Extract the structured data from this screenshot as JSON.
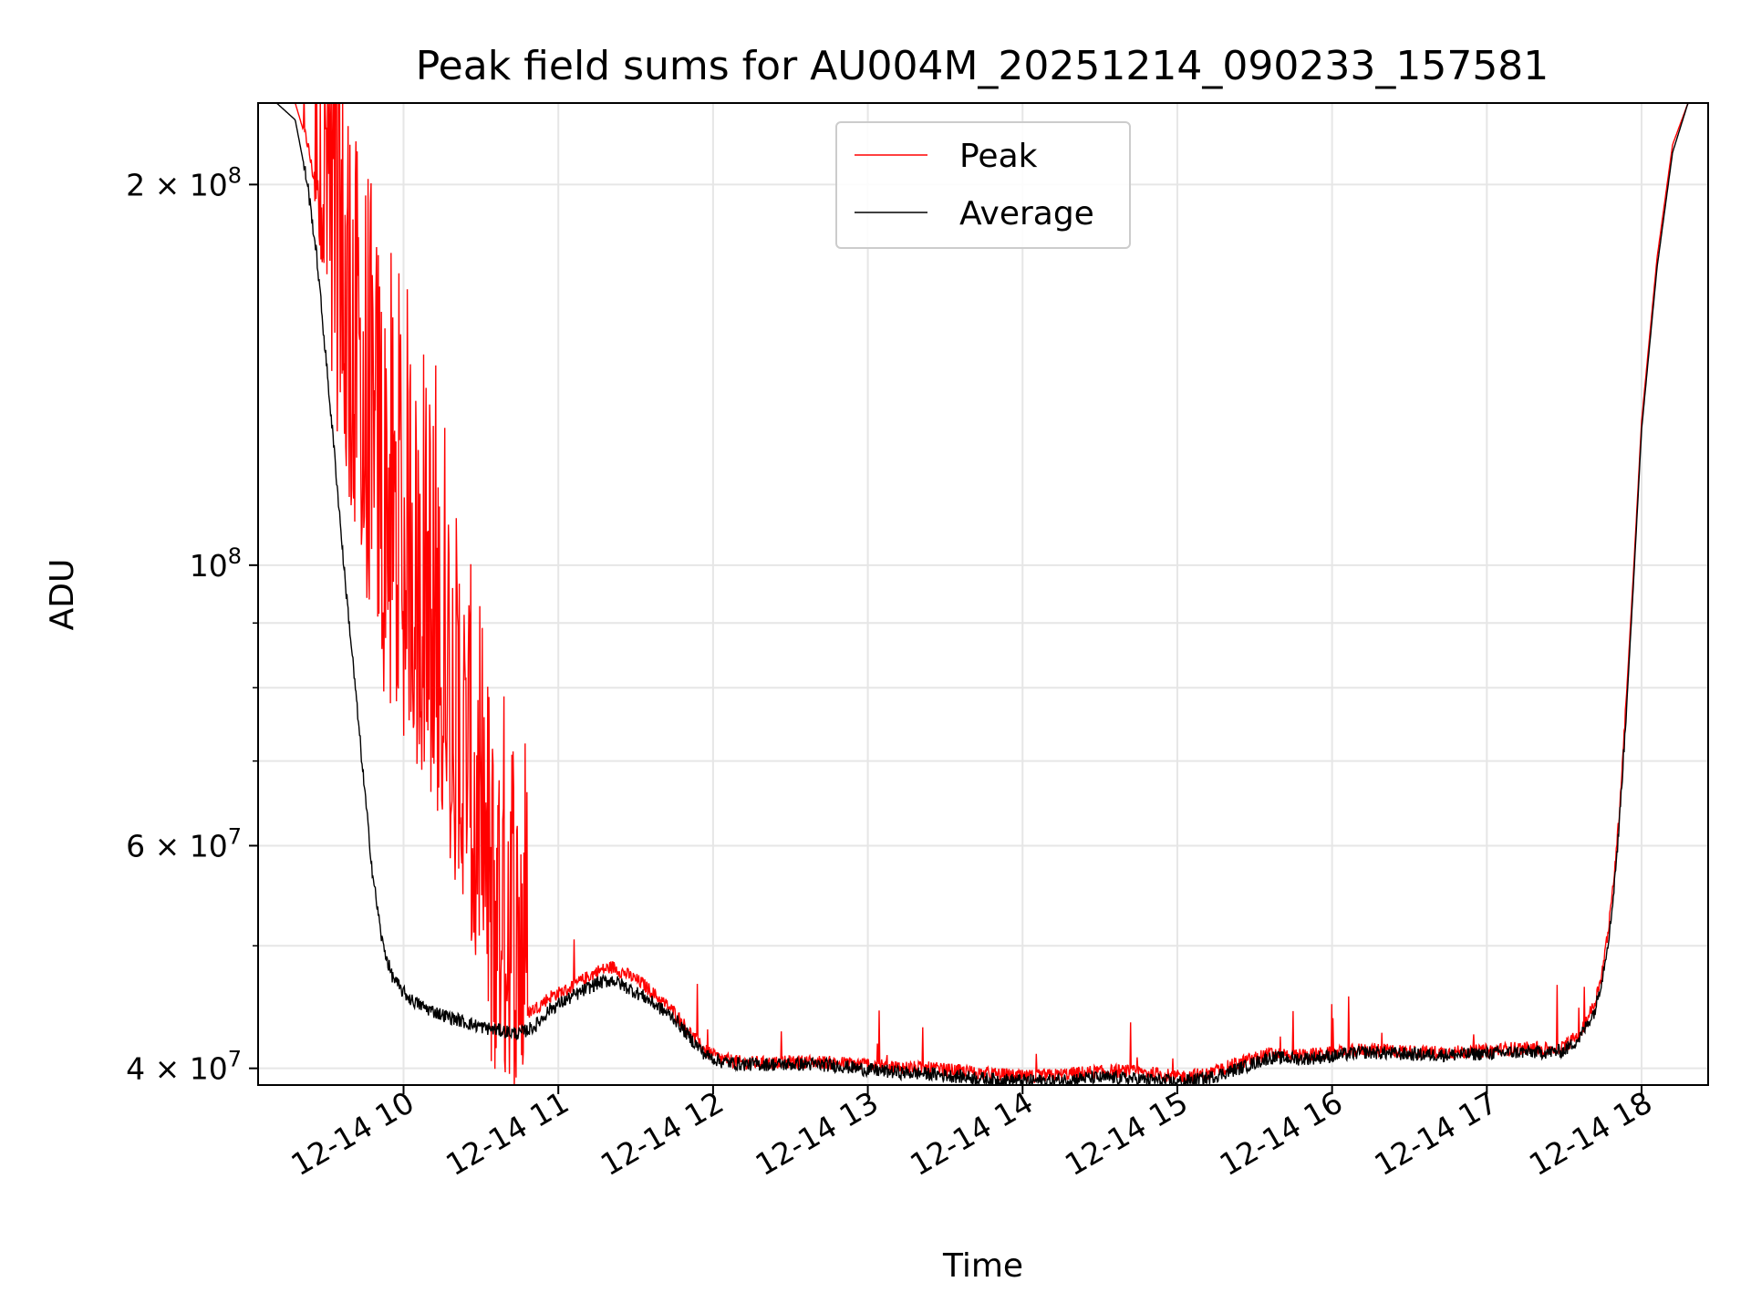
{
  "chart_data": {
    "type": "line",
    "title": "Peak field sums for AU004M_20251214_090233_157581",
    "xlabel": "Time",
    "ylabel": "ADU",
    "yscale": "log",
    "xlim": [
      9.06,
      18.43
    ],
    "ylim": [
      38800000,
      232000000
    ],
    "grid": true,
    "legend_position": "top-center",
    "x_ticks": [
      {
        "value": 10,
        "label": "12-14 10"
      },
      {
        "value": 11,
        "label": "12-14 11"
      },
      {
        "value": 12,
        "label": "12-14 12"
      },
      {
        "value": 13,
        "label": "12-14 13"
      },
      {
        "value": 14,
        "label": "12-14 14"
      },
      {
        "value": 15,
        "label": "12-14 15"
      },
      {
        "value": 16,
        "label": "12-14 16"
      },
      {
        "value": 17,
        "label": "12-14 17"
      },
      {
        "value": 18,
        "label": "12-14 18"
      }
    ],
    "y_major_ticks": [
      {
        "value": 40000000,
        "label": "4 × 10",
        "exp": "7"
      },
      {
        "value": 60000000,
        "label": "6 × 10",
        "exp": "7"
      },
      {
        "value": 100000000,
        "label": "10",
        "exp": "8"
      },
      {
        "value": 200000000,
        "label": "2 × 10",
        "exp": "8"
      }
    ],
    "y_minor_ticks": [
      50000000,
      70000000,
      80000000,
      90000000
    ],
    "series": [
      {
        "name": "Peak",
        "color": "#ff0000",
        "x": [
          9.06,
          9.18,
          9.3,
          9.38,
          9.44,
          9.5,
          9.56,
          9.62,
          9.68,
          9.74,
          9.8,
          9.86,
          9.92,
          9.98,
          10.05,
          10.15,
          10.25,
          10.35,
          10.45,
          10.55,
          10.65,
          10.75,
          10.85,
          10.95,
          11.05,
          11.15,
          11.25,
          11.35,
          11.45,
          11.55,
          11.65,
          11.75,
          11.85,
          11.95,
          12.05,
          12.2,
          12.4,
          12.6,
          12.8,
          13.0,
          13.2,
          13.4,
          13.6,
          13.8,
          14.0,
          14.2,
          14.4,
          14.6,
          14.8,
          15.0,
          15.2,
          15.4,
          15.6,
          15.8,
          16.0,
          16.2,
          16.4,
          16.6,
          16.8,
          17.0,
          17.2,
          17.4,
          17.5,
          17.6,
          17.7,
          17.75,
          17.8,
          17.85,
          17.9,
          17.95,
          18.0,
          18.1,
          18.2,
          18.3,
          18.43
        ],
        "values": [
          232000000,
          232000000,
          232000000,
          215000000,
          195000000,
          175000000,
          155000000,
          138000000,
          124000000,
          112000000,
          102000000,
          95000000,
          91000000,
          88000000,
          85000000,
          78000000,
          72000000,
          63000000,
          55000000,
          47000000,
          44500000,
          43800000,
          44500000,
          45500000,
          46000000,
          46800000,
          47600000,
          48000000,
          47300000,
          46500000,
          45300000,
          44200000,
          42600000,
          41200000,
          40600000,
          40300000,
          40300000,
          40400000,
          40300000,
          40200000,
          40000000,
          39900000,
          39700000,
          39500000,
          39300000,
          39400000,
          39600000,
          39700000,
          39600000,
          39300000,
          39500000,
          40300000,
          41000000,
          40900000,
          41000000,
          41300000,
          41200000,
          41100000,
          41100000,
          41200000,
          41400000,
          41300000,
          41500000,
          42500000,
          45000000,
          48000000,
          53000000,
          62000000,
          78000000,
          100000000,
          130000000,
          175000000,
          215000000,
          232000000,
          232000000
        ]
      },
      {
        "name": "Average",
        "color": "#000000",
        "x": [
          9.06,
          9.18,
          9.3,
          9.38,
          9.44,
          9.5,
          9.56,
          9.62,
          9.68,
          9.74,
          9.8,
          9.86,
          9.92,
          9.98,
          10.05,
          10.15,
          10.25,
          10.35,
          10.45,
          10.55,
          10.65,
          10.75,
          10.85,
          10.95,
          11.05,
          11.15,
          11.25,
          11.35,
          11.45,
          11.55,
          11.65,
          11.75,
          11.85,
          11.95,
          12.05,
          12.2,
          12.4,
          12.6,
          12.8,
          13.0,
          13.2,
          13.4,
          13.6,
          13.8,
          14.0,
          14.2,
          14.4,
          14.6,
          14.8,
          15.0,
          15.2,
          15.4,
          15.6,
          15.8,
          16.0,
          16.2,
          16.4,
          16.6,
          16.8,
          17.0,
          17.2,
          17.4,
          17.5,
          17.6,
          17.7,
          17.75,
          17.8,
          17.85,
          17.9,
          17.95,
          18.0,
          18.1,
          18.2,
          18.3,
          18.43
        ],
        "values": [
          232000000,
          232000000,
          225000000,
          200000000,
          175000000,
          145000000,
          120000000,
          98000000,
          82000000,
          68000000,
          57000000,
          50500000,
          47500000,
          46200000,
          45300000,
          44600000,
          44100000,
          43700000,
          43300000,
          43000000,
          42800000,
          42600000,
          43200000,
          44600000,
          45300000,
          46000000,
          46700000,
          47000000,
          46300000,
          45600000,
          44700000,
          43800000,
          42300000,
          41000000,
          40500000,
          40300000,
          40300000,
          40300000,
          40200000,
          39900000,
          39700000,
          39600000,
          39400000,
          39200000,
          39100000,
          39100000,
          39300000,
          39300000,
          39200000,
          39000000,
          39300000,
          40000000,
          40800000,
          40700000,
          40900000,
          41200000,
          41100000,
          41000000,
          41000000,
          41100000,
          41200000,
          41200000,
          41300000,
          42300000,
          44500000,
          47500000,
          52000000,
          61000000,
          76000000,
          98000000,
          128000000,
          172000000,
          212000000,
          232000000,
          232000000
        ]
      }
    ]
  }
}
